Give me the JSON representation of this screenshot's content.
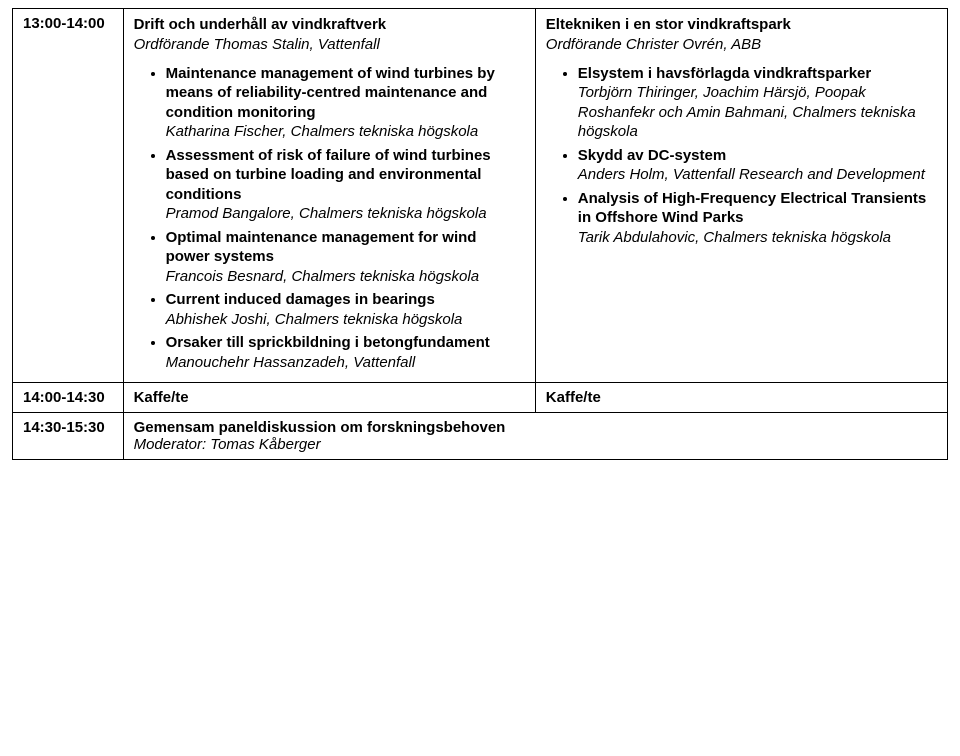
{
  "row1": {
    "time": "13:00-14:00",
    "left": {
      "title": "Drift och underhåll av vindkraftverk",
      "chair": "Ordförande Thomas Stalin, Vattenfall",
      "items": [
        {
          "title": "Maintenance management of wind turbines by means of reliability-centred maintenance and condition monitoring",
          "author": "Katharina Fischer, Chalmers tekniska högskola"
        },
        {
          "title": "Assessment of risk of failure of wind turbines based on turbine loading and environmental conditions",
          "author": "Pramod Bangalore, Chalmers tekniska högskola"
        },
        {
          "title": "Optimal maintenance management for wind power systems",
          "author": "Francois Besnard, Chalmers tekniska högskola"
        },
        {
          "title": "Current induced damages in bearings",
          "author": "Abhishek Joshi, Chalmers tekniska högskola"
        },
        {
          "title": "Orsaker till sprickbildning i betongfundament",
          "author": "Manouchehr Hassanzadeh, Vattenfall"
        }
      ]
    },
    "right": {
      "title": "Eltekniken i en stor vindkraftspark",
      "chair": "Ordförande Christer Ovrén, ABB",
      "items": [
        {
          "title": "Elsystem i havsförlagda vindkraftsparker",
          "author": "Torbjörn Thiringer, Joachim Härsjö, Poopak Roshanfekr och Amin Bahmani, Chalmers tekniska högskola"
        },
        {
          "title": "Skydd av DC-system",
          "author": "Anders Holm, Vattenfall Research and Development"
        },
        {
          "title": "Analysis of High-Frequency Electrical Transients in Offshore Wind Parks",
          "author": "Tarik Abdulahovic, Chalmers tekniska högskola"
        }
      ]
    }
  },
  "row2": {
    "time": "14:00-14:30",
    "left": "Kaffe/te",
    "right": "Kaffe/te"
  },
  "row3": {
    "time": "14:30-15:30",
    "title": "Gemensam paneldiskussion om forskningsbehoven",
    "moderator": "Moderator: Tomas Kåberger"
  }
}
